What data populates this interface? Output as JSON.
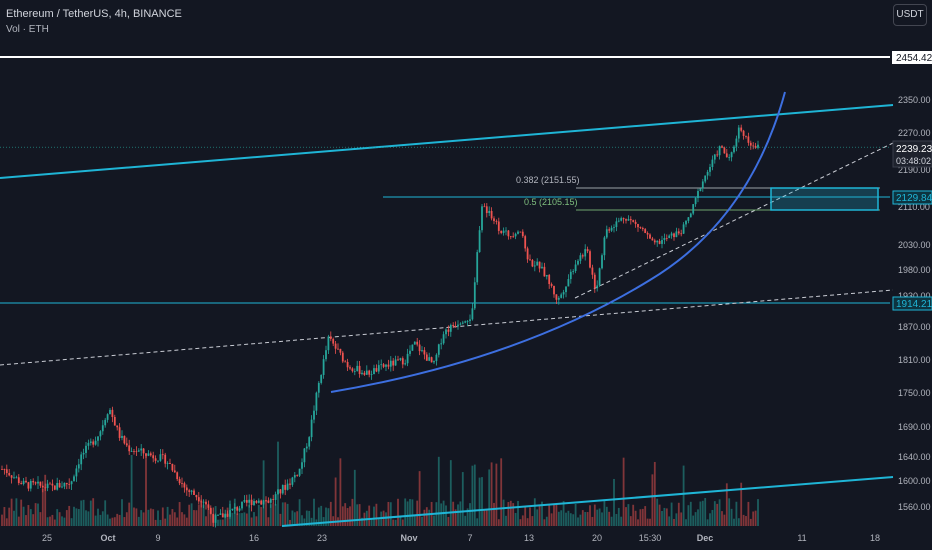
{
  "header": {
    "title": "Ethereum / TetherUS, 4h, BINANCE",
    "volume_label": "Vol · ETH",
    "currency_button": "USDT"
  },
  "colors": {
    "background": "#131722",
    "up": "#26a69a",
    "down": "#ef5350",
    "channel": "#1fb5d6",
    "curve": "#3d6fe0",
    "axis_text": "#b2b5be"
  },
  "chart_data": {
    "type": "candlestick",
    "title": "Ethereum / TetherUS, 4h, BINANCE",
    "xlabel": "",
    "ylabel": "",
    "y_axis_ticks": [
      "2350.00",
      "2270.00",
      "2190.00",
      "2110.00",
      "2030.00",
      "1980.00",
      "1930.00",
      "1870.00",
      "1810.00",
      "1750.00",
      "1690.00",
      "1640.00",
      "1600.00",
      "1560.00"
    ],
    "x_axis_ticks": [
      "25",
      "Oct",
      "9",
      "16",
      "23",
      "Nov",
      "7",
      "13",
      "20",
      "15:30",
      "Dec",
      "11",
      "18"
    ],
    "price_markers": [
      {
        "label": "2454.42",
        "style": "white-horizontal-line"
      },
      {
        "label": "2239.23",
        "sub": "03:48:02",
        "style": "last-price"
      },
      {
        "label": "2129.84",
        "style": "cyan-horizontal-line"
      },
      {
        "label": "1914.21",
        "style": "cyan-horizontal-line"
      }
    ],
    "fib_levels": [
      {
        "label": "0.382 (2151.55)",
        "price": 2151.55
      },
      {
        "label": "0.5 (2105.15)",
        "price": 2105.15
      }
    ],
    "path_points": [
      {
        "x": "Sep 20",
        "y": 1620
      },
      {
        "x": "Sep 22",
        "y": 1595
      },
      {
        "x": "Sep 25",
        "y": 1590
      },
      {
        "x": "Sep 27",
        "y": 1598
      },
      {
        "x": "Sep 28",
        "y": 1640
      },
      {
        "x": "Sep 30",
        "y": 1680
      },
      {
        "x": "Oct 1",
        "y": 1725
      },
      {
        "x": "Oct 2",
        "y": 1678
      },
      {
        "x": "Oct 3",
        "y": 1655
      },
      {
        "x": "Oct 5",
        "y": 1645
      },
      {
        "x": "Oct 7",
        "y": 1635
      },
      {
        "x": "Oct 9",
        "y": 1588
      },
      {
        "x": "Oct 11",
        "y": 1570
      },
      {
        "x": "Oct 12",
        "y": 1540
      },
      {
        "x": "Oct 14",
        "y": 1555
      },
      {
        "x": "Oct 16",
        "y": 1570
      },
      {
        "x": "Oct 18",
        "y": 1570
      },
      {
        "x": "Oct 20",
        "y": 1600
      },
      {
        "x": "Oct 21",
        "y": 1620
      },
      {
        "x": "Oct 22",
        "y": 1680
      },
      {
        "x": "Oct 23",
        "y": 1770
      },
      {
        "x": "Oct 24",
        "y": 1850
      },
      {
        "x": "Oct 26",
        "y": 1800
      },
      {
        "x": "Oct 28",
        "y": 1785
      },
      {
        "x": "Oct 30",
        "y": 1800
      },
      {
        "x": "Nov 1",
        "y": 1810
      },
      {
        "x": "Nov 2",
        "y": 1840
      },
      {
        "x": "Nov 4",
        "y": 1800
      },
      {
        "x": "Nov 5",
        "y": 1860
      },
      {
        "x": "Nov 7",
        "y": 1885
      },
      {
        "x": "Nov 8",
        "y": 1890
      },
      {
        "x": "Nov 9",
        "y": 2110
      },
      {
        "x": "Nov 10",
        "y": 2095
      },
      {
        "x": "Nov 11",
        "y": 2060
      },
      {
        "x": "Nov 12",
        "y": 2050
      },
      {
        "x": "Nov 13",
        "y": 2065
      },
      {
        "x": "Nov 14",
        "y": 1995
      },
      {
        "x": "Nov 15",
        "y": 1990
      },
      {
        "x": "Nov 16",
        "y": 1960
      },
      {
        "x": "Nov 17",
        "y": 1920
      },
      {
        "x": "Nov 18",
        "y": 1960
      },
      {
        "x": "Nov 19",
        "y": 2000
      },
      {
        "x": "Nov 20",
        "y": 2020
      },
      {
        "x": "Nov 21",
        "y": 1940
      },
      {
        "x": "Nov 22",
        "y": 2060
      },
      {
        "x": "Nov 24",
        "y": 2090
      },
      {
        "x": "Nov 26",
        "y": 2060
      },
      {
        "x": "Nov 27",
        "y": 2030
      },
      {
        "x": "Nov 28",
        "y": 2040
      },
      {
        "x": "Nov 29",
        "y": 2050
      },
      {
        "x": "Nov 30",
        "y": 2060
      },
      {
        "x": "Dec 1",
        "y": 2100
      },
      {
        "x": "Dec 2",
        "y": 2160
      },
      {
        "x": "Dec 3",
        "y": 2200
      },
      {
        "x": "Dec 4",
        "y": 2240
      },
      {
        "x": "Dec 5",
        "y": 2210
      },
      {
        "x": "Dec 6",
        "y": 2285
      },
      {
        "x": "Dec 7",
        "y": 2250
      },
      {
        "x": "Dec 8",
        "y": 2239.23
      }
    ],
    "grid": false
  }
}
